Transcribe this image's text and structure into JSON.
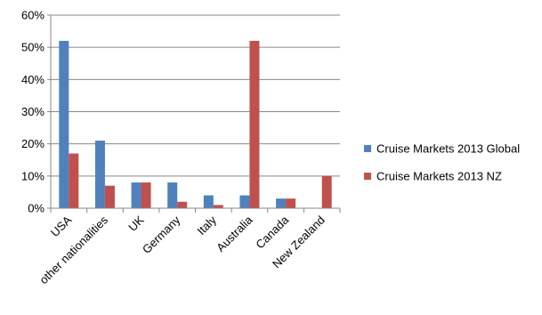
{
  "chart_data": {
    "type": "bar",
    "categories": [
      "USA",
      "other nationalities",
      "UK",
      "Germany",
      "Italy",
      "Australia",
      "Canada",
      "New Zealand"
    ],
    "series": [
      {
        "name": "Cruise Markets 2013 Global",
        "color": "#4f81bd",
        "values": [
          52,
          21,
          8,
          8,
          4,
          4,
          3,
          0
        ]
      },
      {
        "name": "Cruise Markets 2013 NZ",
        "color": "#c0504d",
        "values": [
          17,
          7,
          8,
          2,
          1,
          52,
          3,
          10
        ]
      }
    ],
    "ylim": [
      0,
      60
    ],
    "yticks": [
      "0%",
      "10%",
      "20%",
      "30%",
      "40%",
      "50%",
      "60%"
    ],
    "title": "",
    "xlabel": "",
    "ylabel": "",
    "grid": true,
    "legend": "right"
  }
}
